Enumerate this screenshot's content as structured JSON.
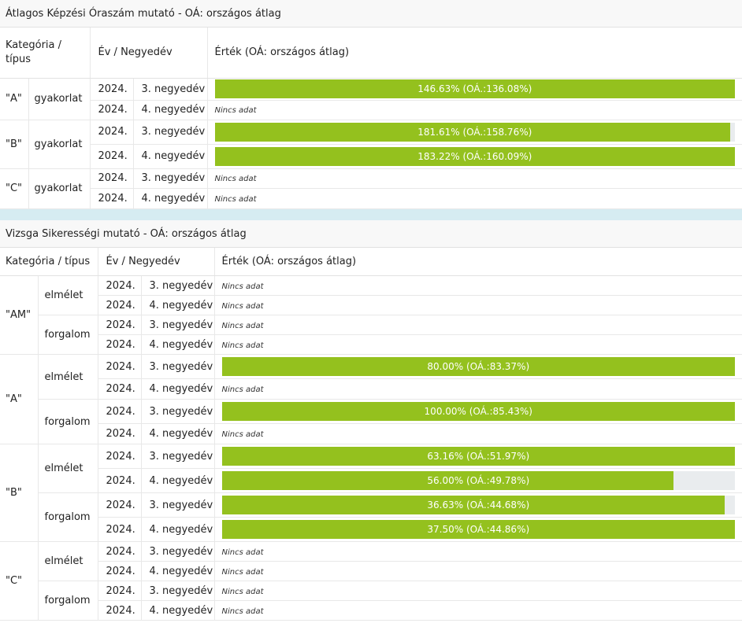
{
  "colors": {
    "bar": "#94c11e",
    "track": "#e9ecee",
    "divider": "#d6ecf2"
  },
  "section1": {
    "title": "Átlagos Képzési Óraszám mutató - OÁ: országos átlag",
    "headers": {
      "category": "Kategória / típus",
      "period": "Év / Negyedév",
      "value": "Érték (OÁ: országos átlag)"
    },
    "groups": [
      {
        "category": "\"A\"",
        "type": "gyakorlat",
        "rows": [
          {
            "year": "2024.",
            "quarter": "3. negyedév",
            "text": "146.63% (OÁ.:136.08%)",
            "fill": 1.0
          },
          {
            "year": "2024.",
            "quarter": "4. negyedév",
            "text": "Nincs adat",
            "fill": null
          }
        ]
      },
      {
        "category": "\"B\"",
        "type": "gyakorlat",
        "rows": [
          {
            "year": "2024.",
            "quarter": "3. negyedév",
            "text": "181.61% (OÁ.:158.76%)",
            "fill": 0.991
          },
          {
            "year": "2024.",
            "quarter": "4. negyedév",
            "text": "183.22% (OÁ.:160.09%)",
            "fill": 1.0
          }
        ]
      },
      {
        "category": "\"C\"",
        "type": "gyakorlat",
        "rows": [
          {
            "year": "2024.",
            "quarter": "3. negyedév",
            "text": "Nincs adat",
            "fill": null
          },
          {
            "year": "2024.",
            "quarter": "4. negyedév",
            "text": "Nincs adat",
            "fill": null
          }
        ]
      }
    ]
  },
  "section2": {
    "title": "Vizsga Sikerességi mutató - OÁ: országos átlag",
    "headers": {
      "category": "Kategória / típus",
      "period": "Év / Negyedév",
      "value": "Érték (OÁ: országos átlag)"
    },
    "categories": [
      {
        "category": "\"AM\"",
        "types": [
          {
            "type": "elmélet",
            "rows": [
              {
                "year": "2024.",
                "quarter": "3. negyedév",
                "text": "Nincs adat",
                "fill": null
              },
              {
                "year": "2024.",
                "quarter": "4. negyedév",
                "text": "Nincs adat",
                "fill": null
              }
            ]
          },
          {
            "type": "forgalom",
            "rows": [
              {
                "year": "2024.",
                "quarter": "3. negyedév",
                "text": "Nincs adat",
                "fill": null
              },
              {
                "year": "2024.",
                "quarter": "4. negyedév",
                "text": "Nincs adat",
                "fill": null
              }
            ]
          }
        ]
      },
      {
        "category": "\"A\"",
        "types": [
          {
            "type": "elmélet",
            "rows": [
              {
                "year": "2024.",
                "quarter": "3. negyedév",
                "text": "80.00% (OÁ.:83.37%)",
                "fill": 1.0
              },
              {
                "year": "2024.",
                "quarter": "4. negyedév",
                "text": "Nincs adat",
                "fill": null
              }
            ]
          },
          {
            "type": "forgalom",
            "rows": [
              {
                "year": "2024.",
                "quarter": "3. negyedév",
                "text": "100.00% (OÁ.:85.43%)",
                "fill": 1.0
              },
              {
                "year": "2024.",
                "quarter": "4. negyedév",
                "text": "Nincs adat",
                "fill": null
              }
            ]
          }
        ]
      },
      {
        "category": "\"B\"",
        "types": [
          {
            "type": "elmélet",
            "rows": [
              {
                "year": "2024.",
                "quarter": "3. negyedév",
                "text": "63.16% (OÁ.:51.97%)",
                "fill": 1.0
              },
              {
                "year": "2024.",
                "quarter": "4. negyedév",
                "text": "56.00% (OÁ.:49.78%)",
                "fill": 0.88
              }
            ]
          },
          {
            "type": "forgalom",
            "rows": [
              {
                "year": "2024.",
                "quarter": "3. negyedév",
                "text": "36.63% (OÁ.:44.68%)",
                "fill": 0.98
              },
              {
                "year": "2024.",
                "quarter": "4. negyedév",
                "text": "37.50% (OÁ.:44.86%)",
                "fill": 1.0
              }
            ]
          }
        ]
      },
      {
        "category": "\"C\"",
        "types": [
          {
            "type": "elmélet",
            "rows": [
              {
                "year": "2024.",
                "quarter": "3. negyedév",
                "text": "Nincs adat",
                "fill": null
              },
              {
                "year": "2024.",
                "quarter": "4. negyedév",
                "text": "Nincs adat",
                "fill": null
              }
            ]
          },
          {
            "type": "forgalom",
            "rows": [
              {
                "year": "2024.",
                "quarter": "3. negyedév",
                "text": "Nincs adat",
                "fill": null
              },
              {
                "year": "2024.",
                "quarter": "4. negyedév",
                "text": "Nincs adat",
                "fill": null
              }
            ]
          }
        ]
      }
    ]
  }
}
